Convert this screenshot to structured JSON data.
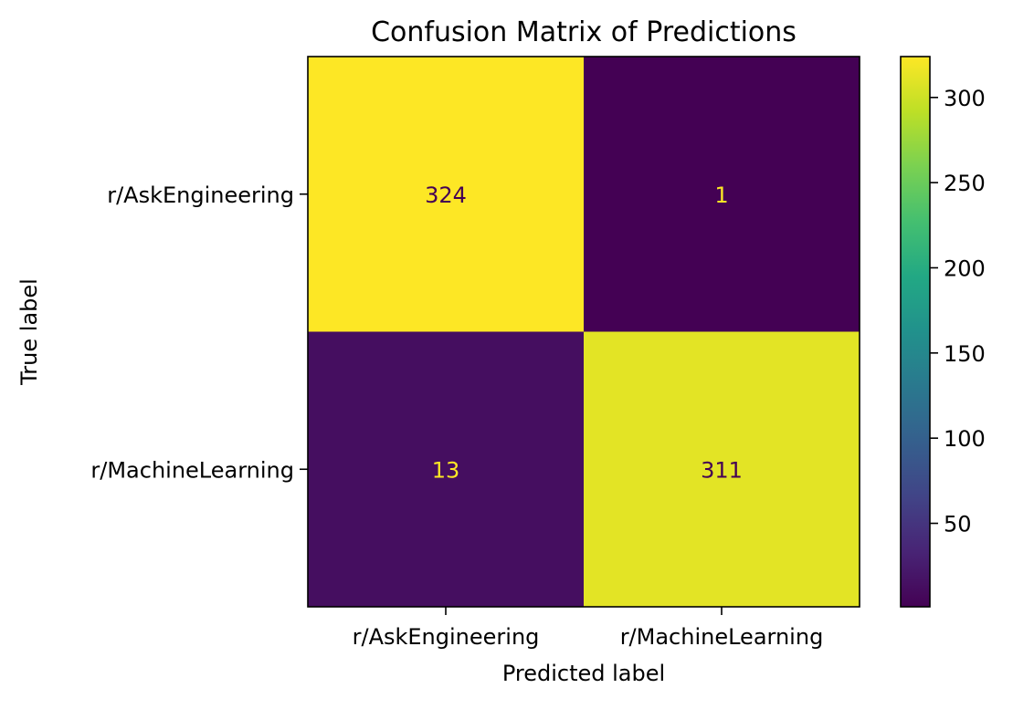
{
  "chart_data": {
    "type": "heatmap",
    "title": "Confusion Matrix of Predictions",
    "xlabel": "Predicted label",
    "ylabel": "True label",
    "x_categories": [
      "r/AskEngineering",
      "r/MachineLearning"
    ],
    "y_categories": [
      "r/AskEngineering",
      "r/MachineLearning"
    ],
    "values": [
      [
        324,
        1
      ],
      [
        13,
        311
      ]
    ],
    "colormap": "viridis",
    "colorbar": {
      "range": [
        1,
        324
      ],
      "ticks": [
        50,
        100,
        150,
        200,
        250,
        300
      ]
    },
    "grid": false
  }
}
